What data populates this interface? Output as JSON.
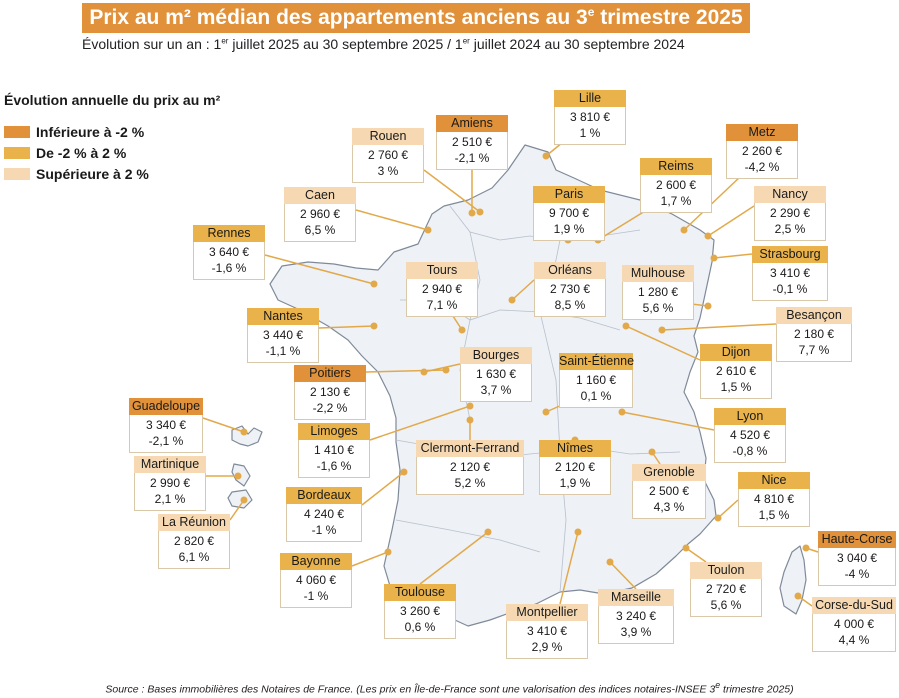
{
  "title": {
    "main": "Prix au m² médian des appartements anciens au 3",
    "sup": "e",
    "end": " trimestre 2025"
  },
  "subtitle": {
    "p1": "Évolution sur un an : 1",
    "s1": "er",
    "p2": " juillet 2025 au 30 septembre 2025 / 1",
    "s2": "er",
    "p3": " juillet 2024 au 30 septembre 2024"
  },
  "legend": {
    "title": "Évolution annuelle du prix au m²",
    "items": [
      {
        "label": "Inférieure à -2 %",
        "color": "#e0913a"
      },
      {
        "label": "De -2 % à 2 %",
        "color": "#e9b24a"
      },
      {
        "label": "Supérieure à 2 %",
        "color": "#f6d9b2"
      }
    ]
  },
  "cities": [
    {
      "name": "Amiens",
      "price": "2 510 €",
      "change": "-2,1 %",
      "color": "#e0913a"
    },
    {
      "name": "Lille",
      "price": "3 810 €",
      "change": "1 %",
      "color": "#e9b24a"
    },
    {
      "name": "Metz",
      "price": "2 260 €",
      "change": "-4,2 %",
      "color": "#e0913a"
    },
    {
      "name": "Rouen",
      "price": "2 760 €",
      "change": "3 %",
      "color": "#f6d9b2"
    },
    {
      "name": "Reims",
      "price": "2 600 €",
      "change": "1,7 %",
      "color": "#e9b24a"
    },
    {
      "name": "Caen",
      "price": "2 960 €",
      "change": "6,5 %",
      "color": "#f6d9b2"
    },
    {
      "name": "Paris",
      "price": "9 700 €",
      "change": "1,9 %",
      "color": "#e9b24a"
    },
    {
      "name": "Nancy",
      "price": "2 290 €",
      "change": "2,5 %",
      "color": "#f6d9b2"
    },
    {
      "name": "Rennes",
      "price": "3 640 €",
      "change": "-1,6 %",
      "color": "#e9b24a"
    },
    {
      "name": "Strasbourg",
      "price": "3 410 €",
      "change": "-0,1 %",
      "color": "#e9b24a"
    },
    {
      "name": "Tours",
      "price": "2 940 €",
      "change": "7,1 %",
      "color": "#f6d9b2"
    },
    {
      "name": "Orléans",
      "price": "2 730 €",
      "change": "8,5 %",
      "color": "#f6d9b2"
    },
    {
      "name": "Mulhouse",
      "price": "1 280 €",
      "change": "5,6 %",
      "color": "#f6d9b2"
    },
    {
      "name": "Nantes",
      "price": "3 440 €",
      "change": "-1,1 %",
      "color": "#e9b24a"
    },
    {
      "name": "Besançon",
      "price": "2 180 €",
      "change": "7,7 %",
      "color": "#f6d9b2"
    },
    {
      "name": "Bourges",
      "price": "1 630 €",
      "change": "3,7 %",
      "color": "#f6d9b2"
    },
    {
      "name": "Saint-Étienne",
      "price": "1 160 €",
      "change": "0,1 %",
      "color": "#e9b24a"
    },
    {
      "name": "Dijon",
      "price": "2 610 €",
      "change": "1,5 %",
      "color": "#e9b24a"
    },
    {
      "name": "Poitiers",
      "price": "2 130 €",
      "change": "-2,2 %",
      "color": "#e0913a"
    },
    {
      "name": "Guadeloupe",
      "price": "3 340 €",
      "change": "-2,1 %",
      "color": "#e0913a"
    },
    {
      "name": "Limoges",
      "price": "1 410 €",
      "change": "-1,6 %",
      "color": "#e9b24a"
    },
    {
      "name": "Lyon",
      "price": "4 520 €",
      "change": "-0,8 %",
      "color": "#e9b24a"
    },
    {
      "name": "Clermont-Ferrand",
      "price": "2 120 €",
      "change": "5,2 %",
      "color": "#f6d9b2"
    },
    {
      "name": "Nîmes",
      "price": "2 120 €",
      "change": "1,9 %",
      "color": "#e9b24a"
    },
    {
      "name": "Martinique",
      "price": "2 990 €",
      "change": "2,1 %",
      "color": "#f6d9b2"
    },
    {
      "name": "Grenoble",
      "price": "2 500 €",
      "change": "4,3 %",
      "color": "#f6d9b2"
    },
    {
      "name": "Nice",
      "price": "4 810 €",
      "change": "1,5 %",
      "color": "#e9b24a"
    },
    {
      "name": "Bordeaux",
      "price": "4 240 €",
      "change": "-1 %",
      "color": "#e9b24a"
    },
    {
      "name": "La Réunion",
      "price": "2 820 €",
      "change": "6,1 %",
      "color": "#f6d9b2"
    },
    {
      "name": "Haute-Corse",
      "price": "3 040 €",
      "change": "-4 %",
      "color": "#e0913a"
    },
    {
      "name": "Bayonne",
      "price": "4 060 €",
      "change": "-1 %",
      "color": "#e9b24a"
    },
    {
      "name": "Toulon",
      "price": "2 720 €",
      "change": "5,6 %",
      "color": "#f6d9b2"
    },
    {
      "name": "Toulouse",
      "price": "3 260 €",
      "change": "0,6 %",
      "color": "#e9b24a"
    },
    {
      "name": "Marseille",
      "price": "3 240 €",
      "change": "3,9 %",
      "color": "#f6d9b2"
    },
    {
      "name": "Corse-du-Sud",
      "price": "4 000 €",
      "change": "4,4 %",
      "color": "#f6d9b2"
    },
    {
      "name": "Montpellier",
      "price": "3 410 €",
      "change": "2,9 %",
      "color": "#f6d9b2"
    }
  ],
  "source": {
    "text": "Source : Bases immobilières des Notaires de France. (Les prix en Île-de-France sont une valorisation des indices notaires-INSEE 3",
    "sup": "e",
    "end": " trimestre 2025)"
  }
}
